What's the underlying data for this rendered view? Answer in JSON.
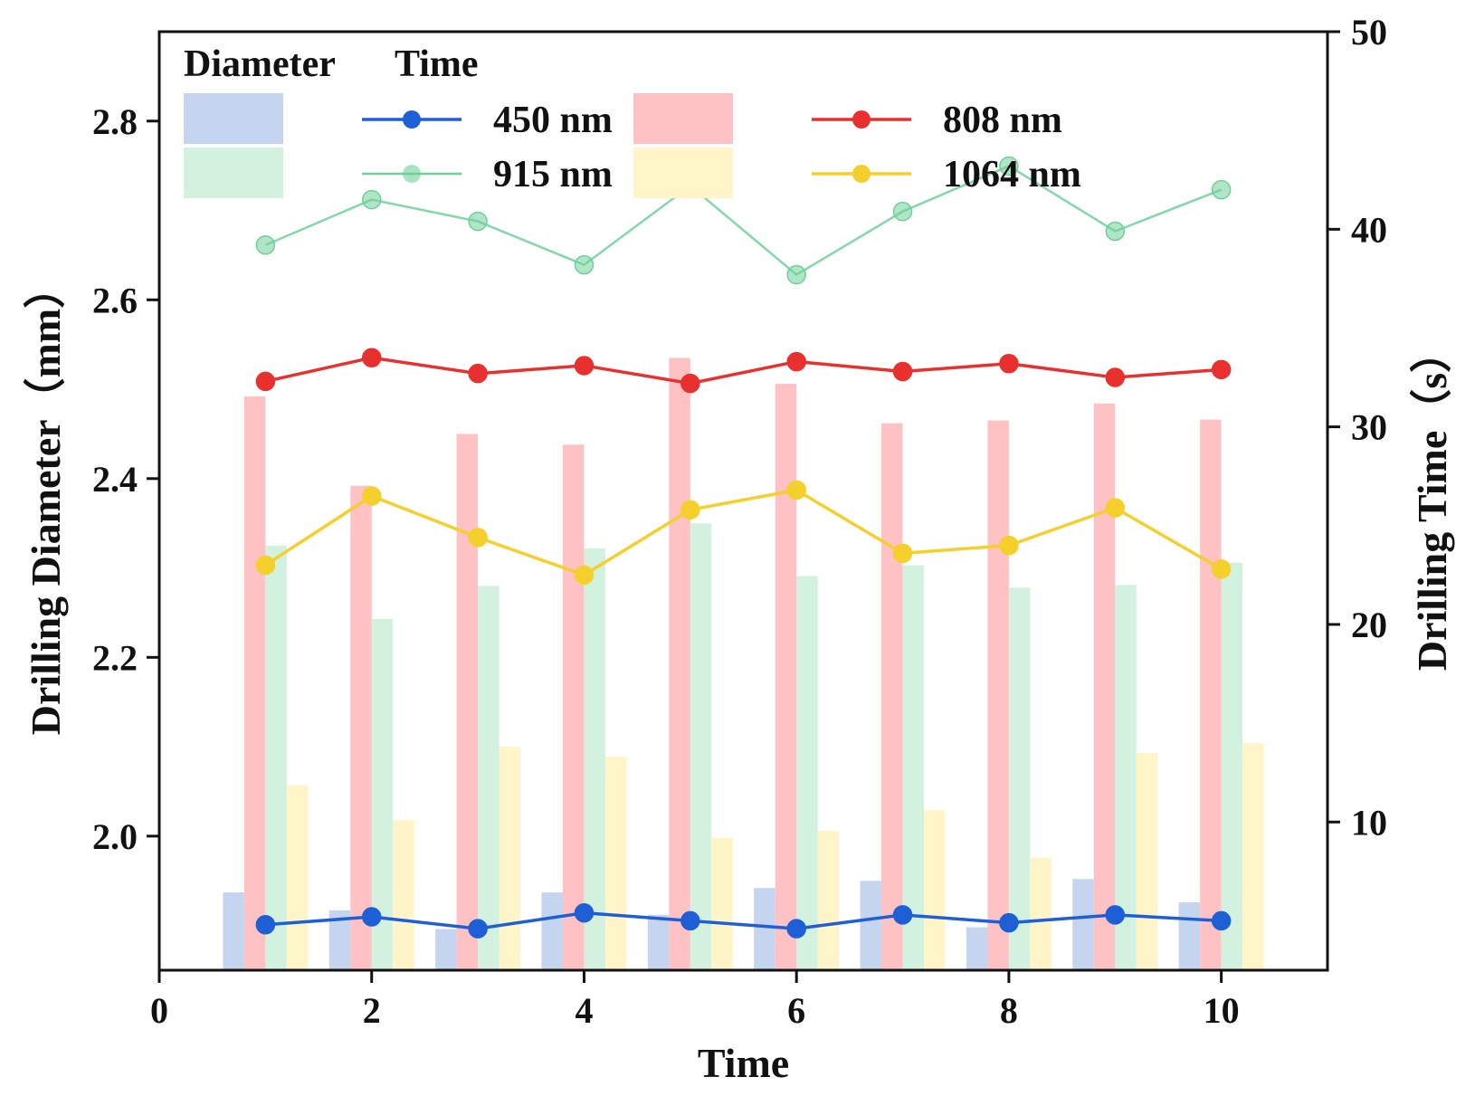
{
  "chart_data": {
    "type": "bar",
    "title": "",
    "xlabel": "Time",
    "ylabel": "Drilling Diameter（mm）",
    "y2label": "Drilling Time（s）",
    "xlim": [
      0,
      11
    ],
    "ylim": [
      1.85,
      2.9
    ],
    "y2lim": [
      2.5,
      50
    ],
    "x": [
      1,
      2,
      3,
      4,
      5,
      6,
      7,
      8,
      9,
      10
    ],
    "x_ticks": [
      0,
      2,
      4,
      6,
      8,
      10
    ],
    "y_ticks": [
      2.0,
      2.2,
      2.4,
      2.6,
      2.8
    ],
    "y_tick_labels": [
      "2.0",
      "2.2",
      "2.4",
      "2.6",
      "2.8"
    ],
    "y2_ticks": [
      10,
      20,
      30,
      40,
      50
    ],
    "legend": {
      "diameter_header": "Diameter",
      "time_header": "Time",
      "placement": "top-left"
    },
    "bar_series": [
      {
        "name": "450 nm",
        "color": "#c5d5f0",
        "values": [
          1.937,
          1.917,
          1.896,
          1.937,
          1.912,
          1.942,
          1.95,
          1.898,
          1.952,
          1.926
        ]
      },
      {
        "name": "808 nm",
        "color": "#ffc2c4",
        "values": [
          2.492,
          2.392,
          2.45,
          2.438,
          2.535,
          2.506,
          2.462,
          2.465,
          2.484,
          2.466
        ]
      },
      {
        "name": "915 nm",
        "color": "#d2f2df",
        "values": [
          2.325,
          2.243,
          2.28,
          2.322,
          2.35,
          2.291,
          2.303,
          2.278,
          2.281,
          2.306
        ]
      },
      {
        "name": "1064 nm",
        "color": "#fff5c8",
        "values": [
          2.057,
          2.018,
          2.1,
          2.089,
          1.998,
          2.006,
          2.029,
          1.976,
          2.093,
          2.104
        ]
      }
    ],
    "line_series": [
      {
        "name": "450 nm",
        "color": "#1f5fd6",
        "values": [
          4.8,
          5.2,
          4.6,
          5.4,
          5.0,
          4.6,
          5.3,
          4.9,
          5.3,
          5.0
        ]
      },
      {
        "name": "808 nm",
        "color": "#e8312f",
        "values": [
          32.3,
          33.5,
          32.7,
          33.1,
          32.2,
          33.3,
          32.8,
          33.2,
          32.5,
          32.9
        ]
      },
      {
        "name": "915 nm",
        "color": "#6fd09a",
        "values": [
          39.2,
          41.5,
          40.4,
          38.2,
          42.2,
          37.7,
          40.9,
          43.2,
          39.9,
          42.0
        ]
      },
      {
        "name": "1064 nm",
        "color": "#f5cf2b",
        "values": [
          23.0,
          26.5,
          24.4,
          22.5,
          25.8,
          26.8,
          23.6,
          24.0,
          25.9,
          22.8
        ]
      }
    ]
  }
}
